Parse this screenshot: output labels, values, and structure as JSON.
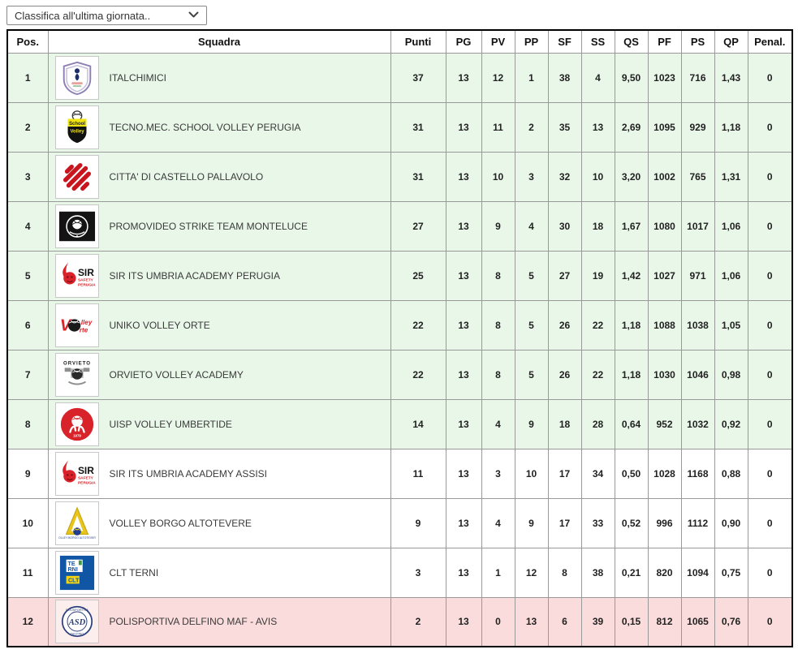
{
  "dropdown": {
    "selected": "Classifica all'ultima giornata.."
  },
  "colors": {
    "row_green": "#e9f7e9",
    "row_white": "#ffffff",
    "row_pink": "#fbdcdc",
    "border_outer": "#000000",
    "border_inner": "#999999"
  },
  "table": {
    "columns": [
      "Pos.",
      "Squadra",
      "Punti",
      "PG",
      "PV",
      "PP",
      "SF",
      "SS",
      "QS",
      "PF",
      "PS",
      "QP",
      "Penal."
    ],
    "rows": [
      {
        "pos": "1",
        "team": "ITALCHIMICI",
        "logo_icon": "italchimici-logo",
        "highlight": "green",
        "punti": "37",
        "pg": "13",
        "pv": "12",
        "pp": "1",
        "sf": "38",
        "ss": "4",
        "qs": "9,50",
        "pf": "1023",
        "ps": "716",
        "qp": "1,43",
        "penal": "0"
      },
      {
        "pos": "2",
        "team": "TECNO.MEC. SCHOOL VOLLEY PERUGIA",
        "logo_icon": "school-volley-logo",
        "highlight": "green",
        "punti": "31",
        "pg": "13",
        "pv": "11",
        "pp": "2",
        "sf": "35",
        "ss": "13",
        "qs": "2,69",
        "pf": "1095",
        "ps": "929",
        "qp": "1,18",
        "penal": "0"
      },
      {
        "pos": "3",
        "team": "CITTA' DI CASTELLO PALLAVOLO",
        "logo_icon": "castello-logo",
        "highlight": "green",
        "punti": "31",
        "pg": "13",
        "pv": "10",
        "pp": "3",
        "sf": "32",
        "ss": "10",
        "qs": "3,20",
        "pf": "1002",
        "ps": "765",
        "qp": "1,31",
        "penal": "0"
      },
      {
        "pos": "4",
        "team": "PROMOVIDEO STRIKE TEAM MONTELUCE",
        "logo_icon": "promovideo-logo",
        "highlight": "green",
        "punti": "27",
        "pg": "13",
        "pv": "9",
        "pp": "4",
        "sf": "30",
        "ss": "18",
        "qs": "1,67",
        "pf": "1080",
        "ps": "1017",
        "qp": "1,06",
        "penal": "0"
      },
      {
        "pos": "5",
        "team": "SIR ITS UMBRIA ACADEMY PERUGIA",
        "logo_icon": "sir-perugia-logo",
        "highlight": "green",
        "punti": "25",
        "pg": "13",
        "pv": "8",
        "pp": "5",
        "sf": "27",
        "ss": "19",
        "qs": "1,42",
        "pf": "1027",
        "ps": "971",
        "qp": "1,06",
        "penal": "0"
      },
      {
        "pos": "6",
        "team": "UNIKO VOLLEY ORTE",
        "logo_icon": "volley-orte-logo",
        "highlight": "green",
        "punti": "22",
        "pg": "13",
        "pv": "8",
        "pp": "5",
        "sf": "26",
        "ss": "22",
        "qs": "1,18",
        "pf": "1088",
        "ps": "1038",
        "qp": "1,05",
        "penal": "0"
      },
      {
        "pos": "7",
        "team": "ORVIETO VOLLEY ACADEMY",
        "logo_icon": "orvieto-logo",
        "highlight": "green",
        "punti": "22",
        "pg": "13",
        "pv": "8",
        "pp": "5",
        "sf": "26",
        "ss": "22",
        "qs": "1,18",
        "pf": "1030",
        "ps": "1046",
        "qp": "0,98",
        "penal": "0"
      },
      {
        "pos": "8",
        "team": "UISP VOLLEY UMBERTIDE",
        "logo_icon": "uisp-umbertide-logo",
        "highlight": "green",
        "punti": "14",
        "pg": "13",
        "pv": "4",
        "pp": "9",
        "sf": "18",
        "ss": "28",
        "qs": "0,64",
        "pf": "952",
        "ps": "1032",
        "qp": "0,92",
        "penal": "0"
      },
      {
        "pos": "9",
        "team": "SIR ITS UMBRIA ACADEMY ASSISI",
        "logo_icon": "sir-assisi-logo",
        "highlight": "white",
        "punti": "11",
        "pg": "13",
        "pv": "3",
        "pp": "10",
        "sf": "17",
        "ss": "34",
        "qs": "0,50",
        "pf": "1028",
        "ps": "1168",
        "qp": "0,88",
        "penal": "0"
      },
      {
        "pos": "10",
        "team": "VOLLEY BORGO ALTOTEVERE",
        "logo_icon": "altotevere-logo",
        "highlight": "white",
        "punti": "9",
        "pg": "13",
        "pv": "4",
        "pp": "9",
        "sf": "17",
        "ss": "33",
        "qs": "0,52",
        "pf": "996",
        "ps": "1112",
        "qp": "0,90",
        "penal": "0"
      },
      {
        "pos": "11",
        "team": "CLT TERNI",
        "logo_icon": "clt-terni-logo",
        "highlight": "white",
        "punti": "3",
        "pg": "13",
        "pv": "1",
        "pp": "12",
        "sf": "8",
        "ss": "38",
        "qs": "0,21",
        "pf": "820",
        "ps": "1094",
        "qp": "0,75",
        "penal": "0"
      },
      {
        "pos": "12",
        "team": "POLISPORTIVA DELFINO MAF - AVIS",
        "logo_icon": "delfino-logo",
        "highlight": "pink",
        "punti": "2",
        "pg": "13",
        "pv": "0",
        "pp": "13",
        "sf": "6",
        "ss": "39",
        "qs": "0,15",
        "pf": "812",
        "ps": "1065",
        "qp": "0,76",
        "penal": "0"
      }
    ]
  }
}
